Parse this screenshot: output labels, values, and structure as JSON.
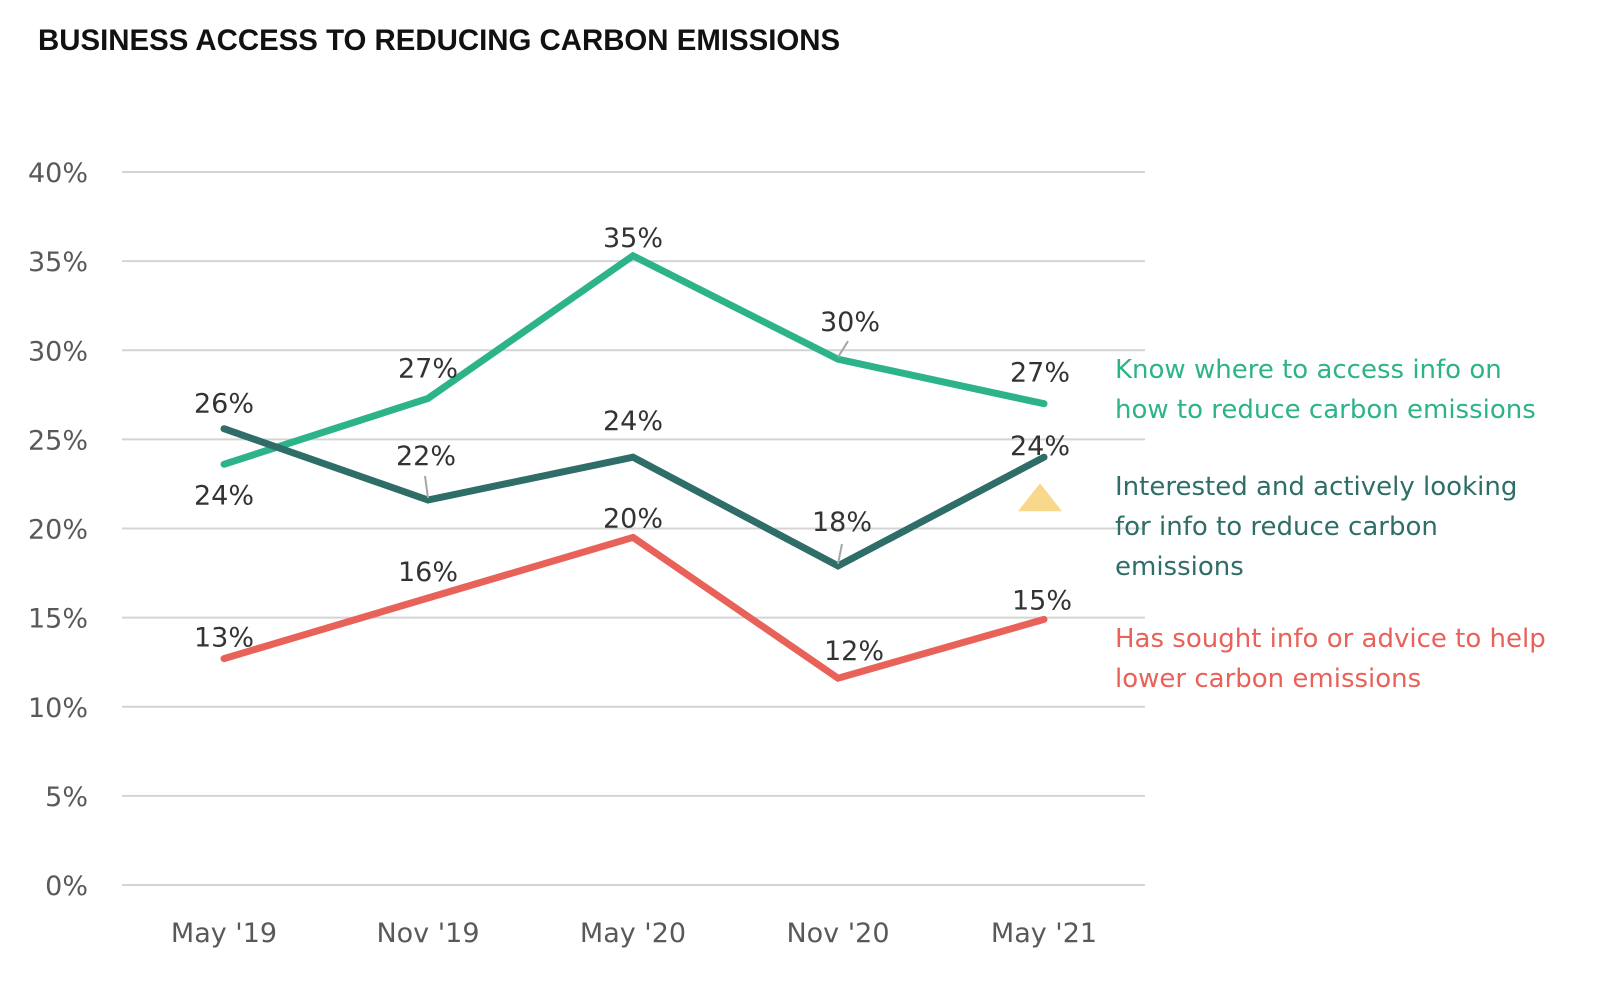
{
  "chart_data": {
    "type": "line",
    "title": "BUSINESS ACCESS TO REDUCING CARBON EMISSIONS",
    "xlabel": "",
    "ylabel": "",
    "categories": [
      "May '19",
      "Nov '19",
      "May '20",
      "Nov '20",
      "May '21"
    ],
    "ylim": [
      0,
      40
    ],
    "yticks": [
      0,
      5,
      10,
      15,
      20,
      25,
      30,
      35,
      40
    ],
    "ytick_labels": [
      "0%",
      "5%",
      "10%",
      "15%",
      "20%",
      "25%",
      "30%",
      "35%",
      "40%"
    ],
    "grid": true,
    "legend_position": "right",
    "series": [
      {
        "name": "Know where to access info on how to reduce carbon emissions",
        "legend_lines": [
          "Know where to access info on",
          "how to reduce carbon emissions"
        ],
        "color": "#2DB38A",
        "values": [
          23.6,
          27.3,
          35.3,
          29.5,
          27.0
        ],
        "labels": [
          "24%",
          "27%",
          "35%",
          "30%",
          "27%"
        ]
      },
      {
        "name": "Interested and actively looking for info to reduce carbon emissions",
        "legend_lines": [
          "Interested and actively looking",
          "for info to reduce carbon",
          "emissions"
        ],
        "color": "#2F6E68",
        "values": [
          25.6,
          21.6,
          24.0,
          17.9,
          24.0
        ],
        "labels": [
          "26%",
          "22%",
          "24%",
          "18%",
          "24%"
        ]
      },
      {
        "name": "Has sought info or advice to help lower carbon emissions",
        "legend_lines": [
          "Has sought info or advice to help",
          "lower carbon emissions"
        ],
        "color": "#E8625A",
        "values": [
          12.7,
          16.1,
          19.5,
          11.6,
          14.9
        ],
        "labels": [
          "13%",
          "16%",
          "20%",
          "12%",
          "15%"
        ]
      }
    ],
    "annotations": [
      {
        "type": "up-triangle",
        "category": "May '21",
        "series": "Interested and actively looking for info to reduce carbon emissions",
        "color": "#F8D98C",
        "meaning": "increase"
      }
    ]
  }
}
